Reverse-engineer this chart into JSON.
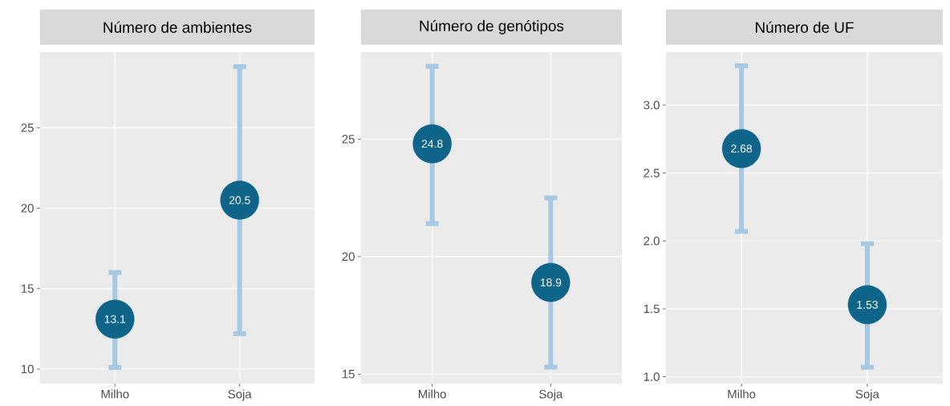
{
  "chart_data": [
    {
      "type": "scatter",
      "title": "Número de ambientes",
      "categories": [
        "Milho",
        "Soja"
      ],
      "values": [
        13.1,
        20.5
      ],
      "errors": [
        [
          10.1,
          16.0
        ],
        [
          12.2,
          28.8
        ]
      ],
      "value_labels": [
        "13.1",
        "20.5"
      ],
      "color": "#0e6489",
      "grid": true,
      "ylim": [
        9.1,
        29.7
      ],
      "yticks": [
        10,
        15,
        20,
        25
      ]
    },
    {
      "type": "scatter",
      "title": "Número de genótipos",
      "categories": [
        "Milho",
        "Soja"
      ],
      "values": [
        24.8,
        18.9
      ],
      "errors": [
        [
          21.4,
          28.1
        ],
        [
          15.3,
          22.5
        ]
      ],
      "value_labels": [
        "24.8",
        "18.9"
      ],
      "color": "#0e6489",
      "grid": true,
      "ylim": [
        14.6,
        28.7
      ],
      "yticks": [
        15,
        20,
        25
      ]
    },
    {
      "type": "scatter",
      "title": "Número de UF",
      "categories": [
        "Milho",
        "Soja"
      ],
      "values": [
        2.68,
        1.53
      ],
      "errors": [
        [
          2.07,
          3.29
        ],
        [
          1.07,
          1.98
        ]
      ],
      "value_labels": [
        "2.68",
        "1.53"
      ],
      "color": "#0e6489",
      "grid": true,
      "ylim": [
        0.95,
        3.39
      ],
      "yticks": [
        {
          "value": 1,
          "label": "1.0"
        },
        {
          "value": 1.5,
          "label": "1.5"
        },
        {
          "value": 2,
          "label": "2.0"
        },
        {
          "value": 2.5,
          "label": "2.5"
        },
        {
          "value": 3,
          "label": "3.0"
        }
      ]
    }
  ]
}
